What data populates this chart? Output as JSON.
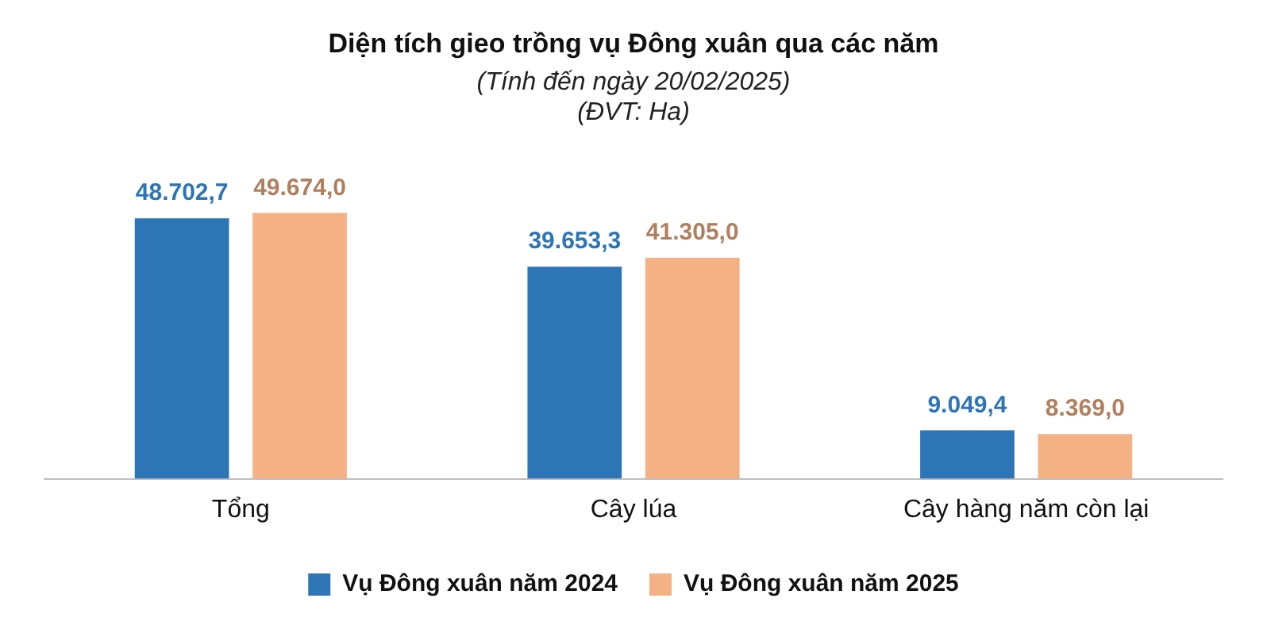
{
  "chart_data": {
    "type": "bar",
    "title": "Diện tích gieo trồng vụ Đông xuân qua các năm",
    "subtitle": "(Tính đến ngày 20/02/2025)",
    "annotations": [
      "(ĐVT: Ha)"
    ],
    "categories": [
      "Tổng",
      "Cây lúa",
      "Cây hàng năm còn lại"
    ],
    "series": [
      {
        "name": "Vụ Đông xuân năm 2024",
        "color": "#2e75b6",
        "values": [
          48702.7,
          39653.3,
          9049.4
        ],
        "value_labels": [
          "48.702,7",
          "39.653,3",
          "9.049,4"
        ]
      },
      {
        "name": "Vụ Đông xuân năm 2025",
        "color": "#f4b183",
        "values": [
          49674.0,
          41305.0,
          8369.0
        ],
        "value_labels": [
          "49.674,0",
          "41.305,0",
          "8.369,0"
        ]
      }
    ],
    "legend": "bottom",
    "grid": false
  }
}
